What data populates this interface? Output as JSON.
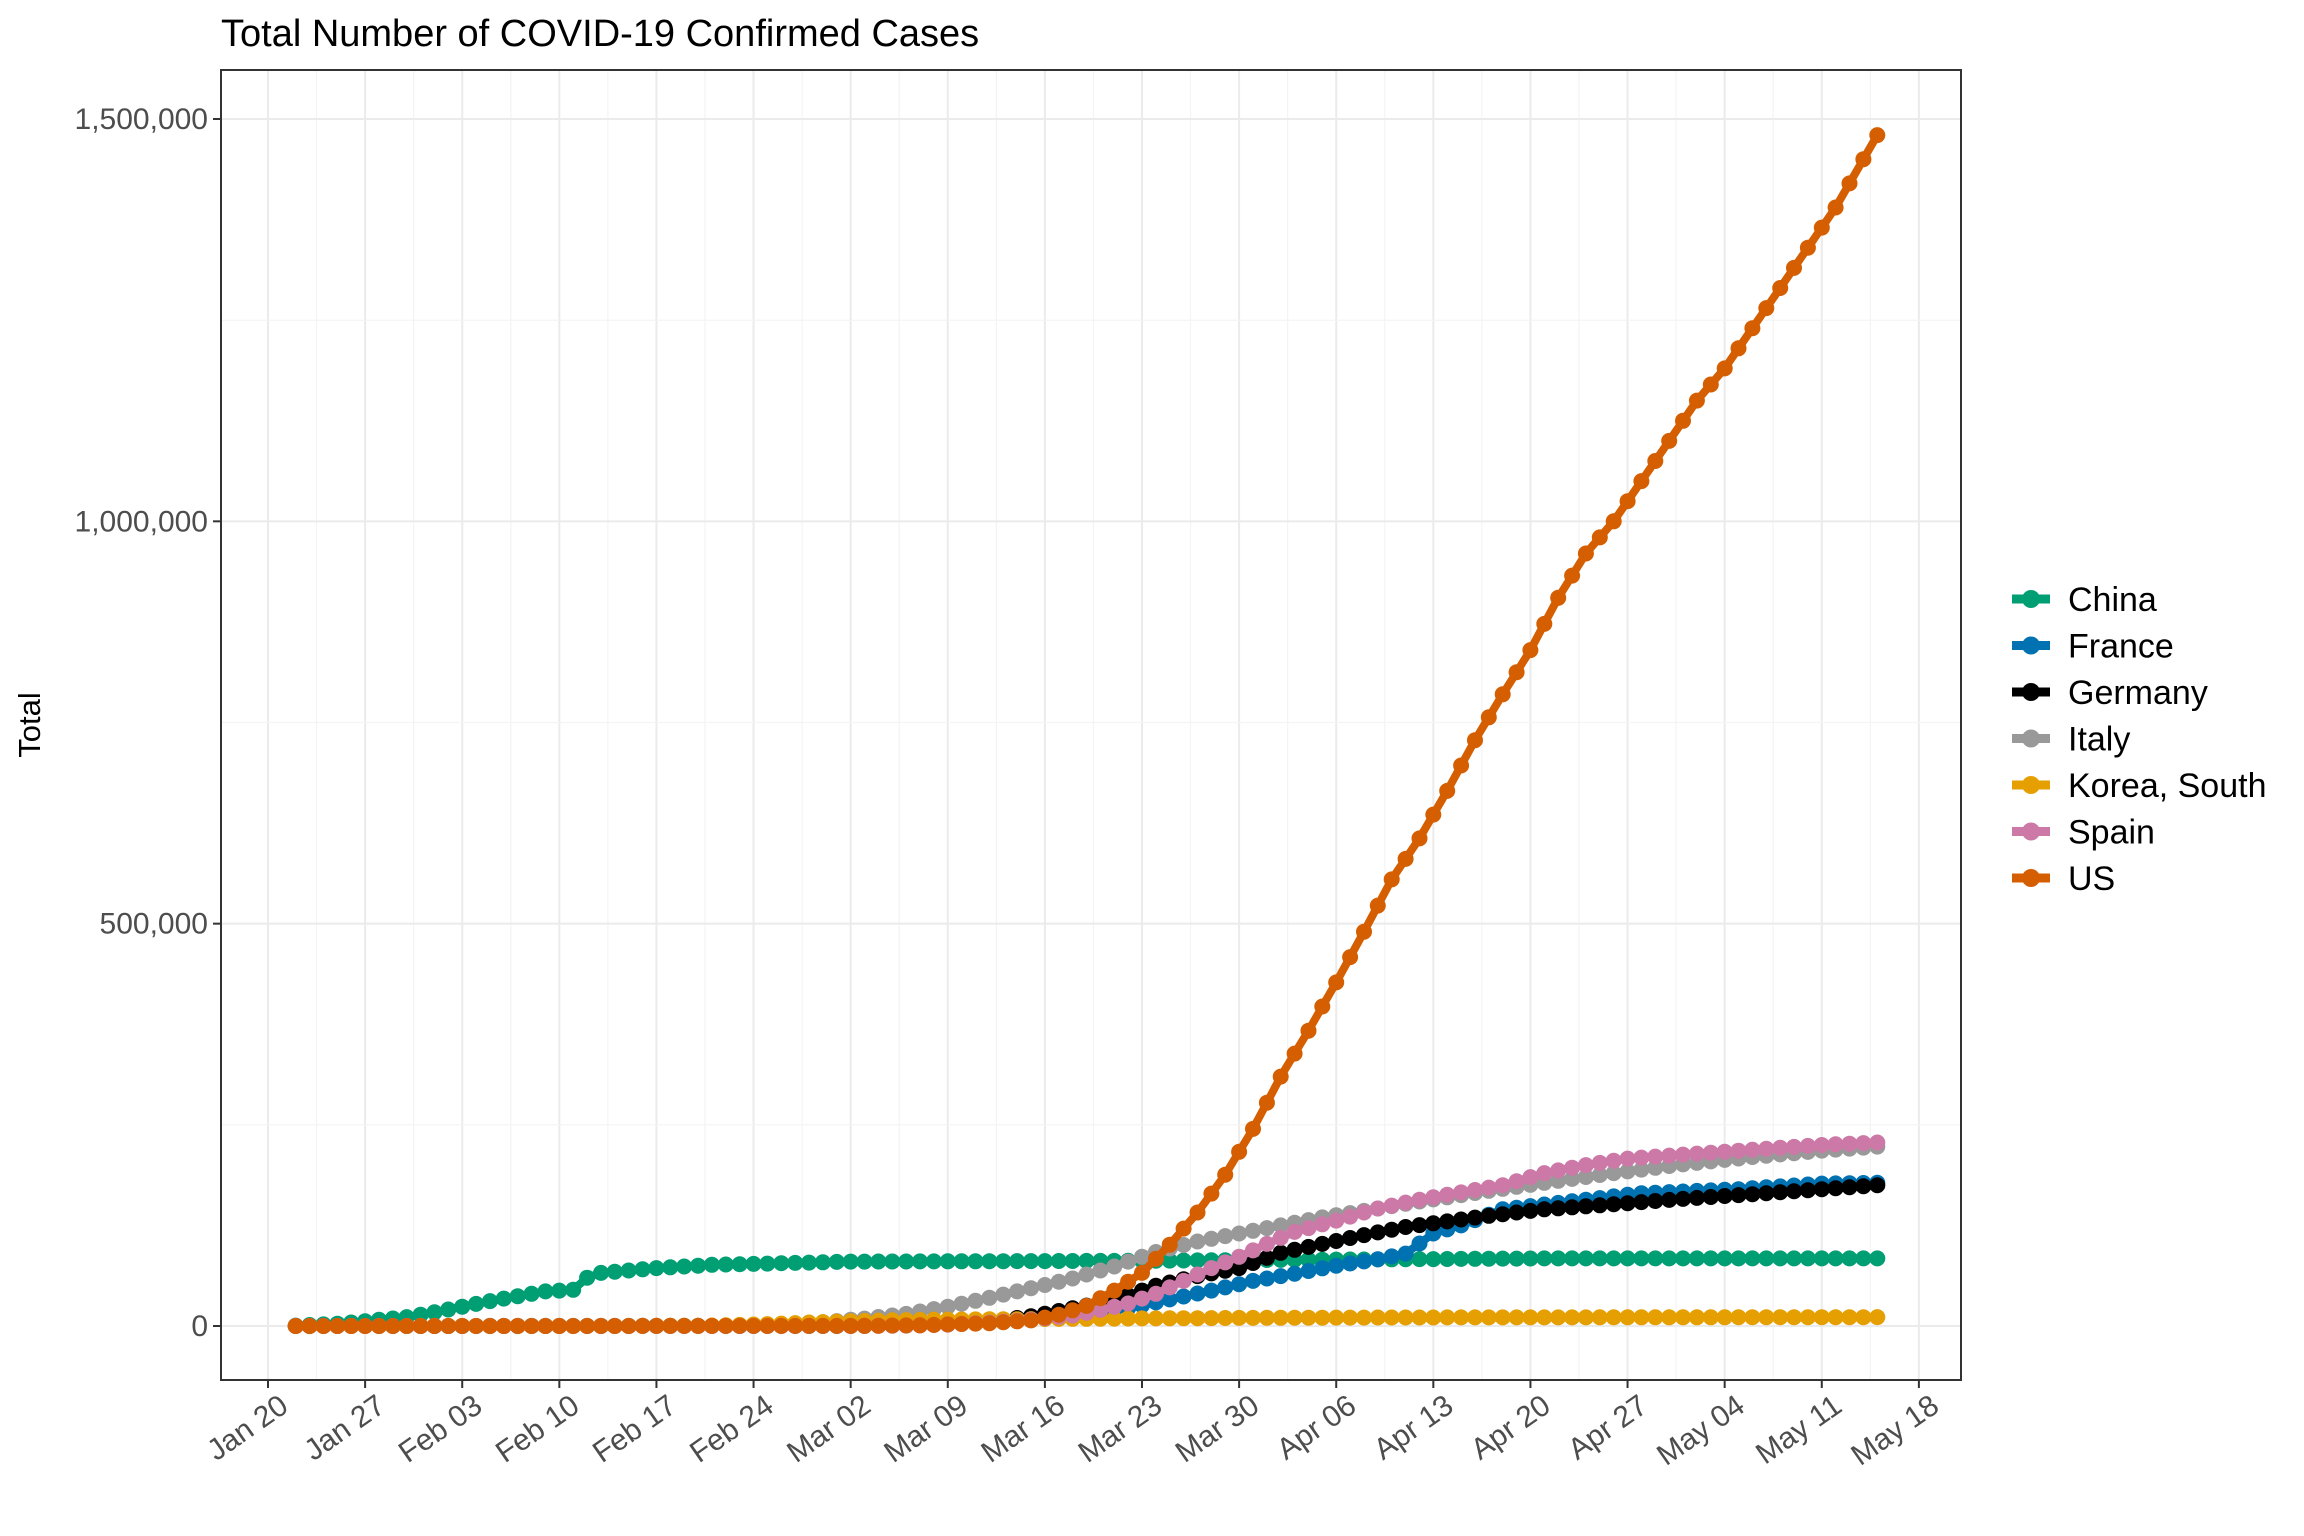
{
  "chart_data": {
    "type": "line",
    "title": "Total Number of COVID-19 Confirmed Cases",
    "ylabel": "Total",
    "xlabel": "",
    "x_start": "2020-01-22",
    "x_end": "2020-05-15",
    "x_ticks": [
      "Jan 20",
      "Jan 27",
      "Feb 03",
      "Feb 10",
      "Feb 17",
      "Feb 24",
      "Mar 02",
      "Mar 09",
      "Mar 16",
      "Mar 23",
      "Mar 30",
      "Apr 06",
      "Apr 13",
      "Apr 20",
      "Apr 27",
      "May 04",
      "May 11",
      "May 18"
    ],
    "y_ticks": [
      "0",
      "500,000",
      "1,000,000",
      "1,500,000"
    ],
    "ylim": [
      -60000,
      1560000
    ],
    "grid": true,
    "legend_position": "right",
    "series": [
      {
        "name": "China",
        "color": "#009E73",
        "keys": [
          [
            0,
            550
          ],
          [
            3,
            2800
          ],
          [
            5,
            6000
          ],
          [
            8,
            11000
          ],
          [
            10,
            17000
          ],
          [
            12,
            24000
          ],
          [
            14,
            31000
          ],
          [
            16,
            37000
          ],
          [
            18,
            43000
          ],
          [
            20,
            45000
          ],
          [
            21,
            60000
          ],
          [
            22,
            66000
          ],
          [
            24,
            69000
          ],
          [
            26,
            72000
          ],
          [
            30,
            76000
          ],
          [
            40,
            80000
          ],
          [
            60,
            81000
          ],
          [
            70,
            82000
          ],
          [
            80,
            83000
          ],
          [
            90,
            84000
          ],
          [
            114,
            84000
          ]
        ]
      },
      {
        "name": "France",
        "color": "#0072B2",
        "keys": [
          [
            0,
            0
          ],
          [
            40,
            190
          ],
          [
            45,
            1200
          ],
          [
            50,
            4500
          ],
          [
            53,
            7700
          ],
          [
            55,
            12600
          ],
          [
            57,
            16000
          ],
          [
            60,
            22000
          ],
          [
            63,
            33000
          ],
          [
            66,
            44000
          ],
          [
            69,
            56000
          ],
          [
            72,
            65000
          ],
          [
            75,
            75000
          ],
          [
            78,
            83000
          ],
          [
            80,
            90000
          ],
          [
            82,
            115000
          ],
          [
            84,
            125000
          ],
          [
            87,
            145000
          ],
          [
            92,
            155000
          ],
          [
            97,
            165000
          ],
          [
            104,
            170000
          ],
          [
            110,
            177000
          ],
          [
            114,
            178000
          ]
        ]
      },
      {
        "name": "Germany",
        "color": "#000000",
        "keys": [
          [
            0,
            0
          ],
          [
            40,
            100
          ],
          [
            45,
            1100
          ],
          [
            50,
            5800
          ],
          [
            53,
            12000
          ],
          [
            56,
            22000
          ],
          [
            59,
            32000
          ],
          [
            62,
            50000
          ],
          [
            65,
            62000
          ],
          [
            68,
            72000
          ],
          [
            71,
            91000
          ],
          [
            74,
            102000
          ],
          [
            77,
            113000
          ],
          [
            80,
            123000
          ],
          [
            83,
            130000
          ],
          [
            86,
            137000
          ],
          [
            90,
            145000
          ],
          [
            94,
            150000
          ],
          [
            100,
            158000
          ],
          [
            106,
            165000
          ],
          [
            114,
            175000
          ]
        ]
      },
      {
        "name": "Italy",
        "color": "#999999",
        "keys": [
          [
            0,
            0
          ],
          [
            30,
            0
          ],
          [
            35,
            1700
          ],
          [
            38,
            4600
          ],
          [
            41,
            9200
          ],
          [
            44,
            15000
          ],
          [
            47,
            24000
          ],
          [
            50,
            35000
          ],
          [
            53,
            47000
          ],
          [
            56,
            59000
          ],
          [
            59,
            74000
          ],
          [
            62,
            92000
          ],
          [
            65,
            105000
          ],
          [
            68,
            115000
          ],
          [
            71,
            125000
          ],
          [
            74,
            135000
          ],
          [
            77,
            143000
          ],
          [
            80,
            152000
          ],
          [
            83,
            160000
          ],
          [
            86,
            168000
          ],
          [
            90,
            178000
          ],
          [
            95,
            190000
          ],
          [
            100,
            201000
          ],
          [
            105,
            210000
          ],
          [
            110,
            218000
          ],
          [
            114,
            223000
          ]
        ]
      },
      {
        "name": "Korea, South",
        "color": "#E69F00",
        "keys": [
          [
            0,
            1
          ],
          [
            28,
            200
          ],
          [
            31,
            900
          ],
          [
            34,
            2300
          ],
          [
            37,
            4300
          ],
          [
            40,
            6000
          ],
          [
            43,
            7100
          ],
          [
            46,
            7900
          ],
          [
            50,
            8300
          ],
          [
            60,
            9300
          ],
          [
            70,
            10200
          ],
          [
            80,
            10600
          ],
          [
            90,
            10700
          ],
          [
            114,
            11000
          ]
        ]
      },
      {
        "name": "Spain",
        "color": "#CC79A7",
        "keys": [
          [
            0,
            0
          ],
          [
            40,
            0
          ],
          [
            44,
            500
          ],
          [
            47,
            1700
          ],
          [
            50,
            4200
          ],
          [
            53,
            8000
          ],
          [
            56,
            13000
          ],
          [
            58,
            20000
          ],
          [
            60,
            28000
          ],
          [
            62,
            40000
          ],
          [
            64,
            56000
          ],
          [
            66,
            72000
          ],
          [
            68,
            86000
          ],
          [
            70,
            102000
          ],
          [
            72,
            117000
          ],
          [
            75,
            131000
          ],
          [
            78,
            146000
          ],
          [
            81,
            157000
          ],
          [
            84,
            166000
          ],
          [
            87,
            175000
          ],
          [
            90,
            190000
          ],
          [
            93,
            200000
          ],
          [
            96,
            208000
          ],
          [
            100,
            213000
          ],
          [
            105,
            219000
          ],
          [
            110,
            225000
          ],
          [
            114,
            228000
          ]
        ]
      },
      {
        "name": "US",
        "color": "#D55E00",
        "keys": [
          [
            0,
            0
          ],
          [
            40,
            100
          ],
          [
            45,
            900
          ],
          [
            50,
            3500
          ],
          [
            53,
            7000
          ],
          [
            55,
            14000
          ],
          [
            57,
            25000
          ],
          [
            59,
            44000
          ],
          [
            61,
            66000
          ],
          [
            63,
            101000
          ],
          [
            65,
            141000
          ],
          [
            67,
            188000
          ],
          [
            69,
            245000
          ],
          [
            71,
            310000
          ],
          [
            73,
            367000
          ],
          [
            75,
            427000
          ],
          [
            77,
            490000
          ],
          [
            79,
            555000
          ],
          [
            81,
            606000
          ],
          [
            83,
            665000
          ],
          [
            85,
            728000
          ],
          [
            87,
            785000
          ],
          [
            89,
            840000
          ],
          [
            91,
            905000
          ],
          [
            93,
            960000
          ],
          [
            95,
            1000000
          ],
          [
            97,
            1050000
          ],
          [
            99,
            1100000
          ],
          [
            101,
            1150000
          ],
          [
            103,
            1190000
          ],
          [
            105,
            1240000
          ],
          [
            107,
            1290000
          ],
          [
            109,
            1340000
          ],
          [
            111,
            1390000
          ],
          [
            114,
            1480000
          ]
        ]
      }
    ]
  }
}
